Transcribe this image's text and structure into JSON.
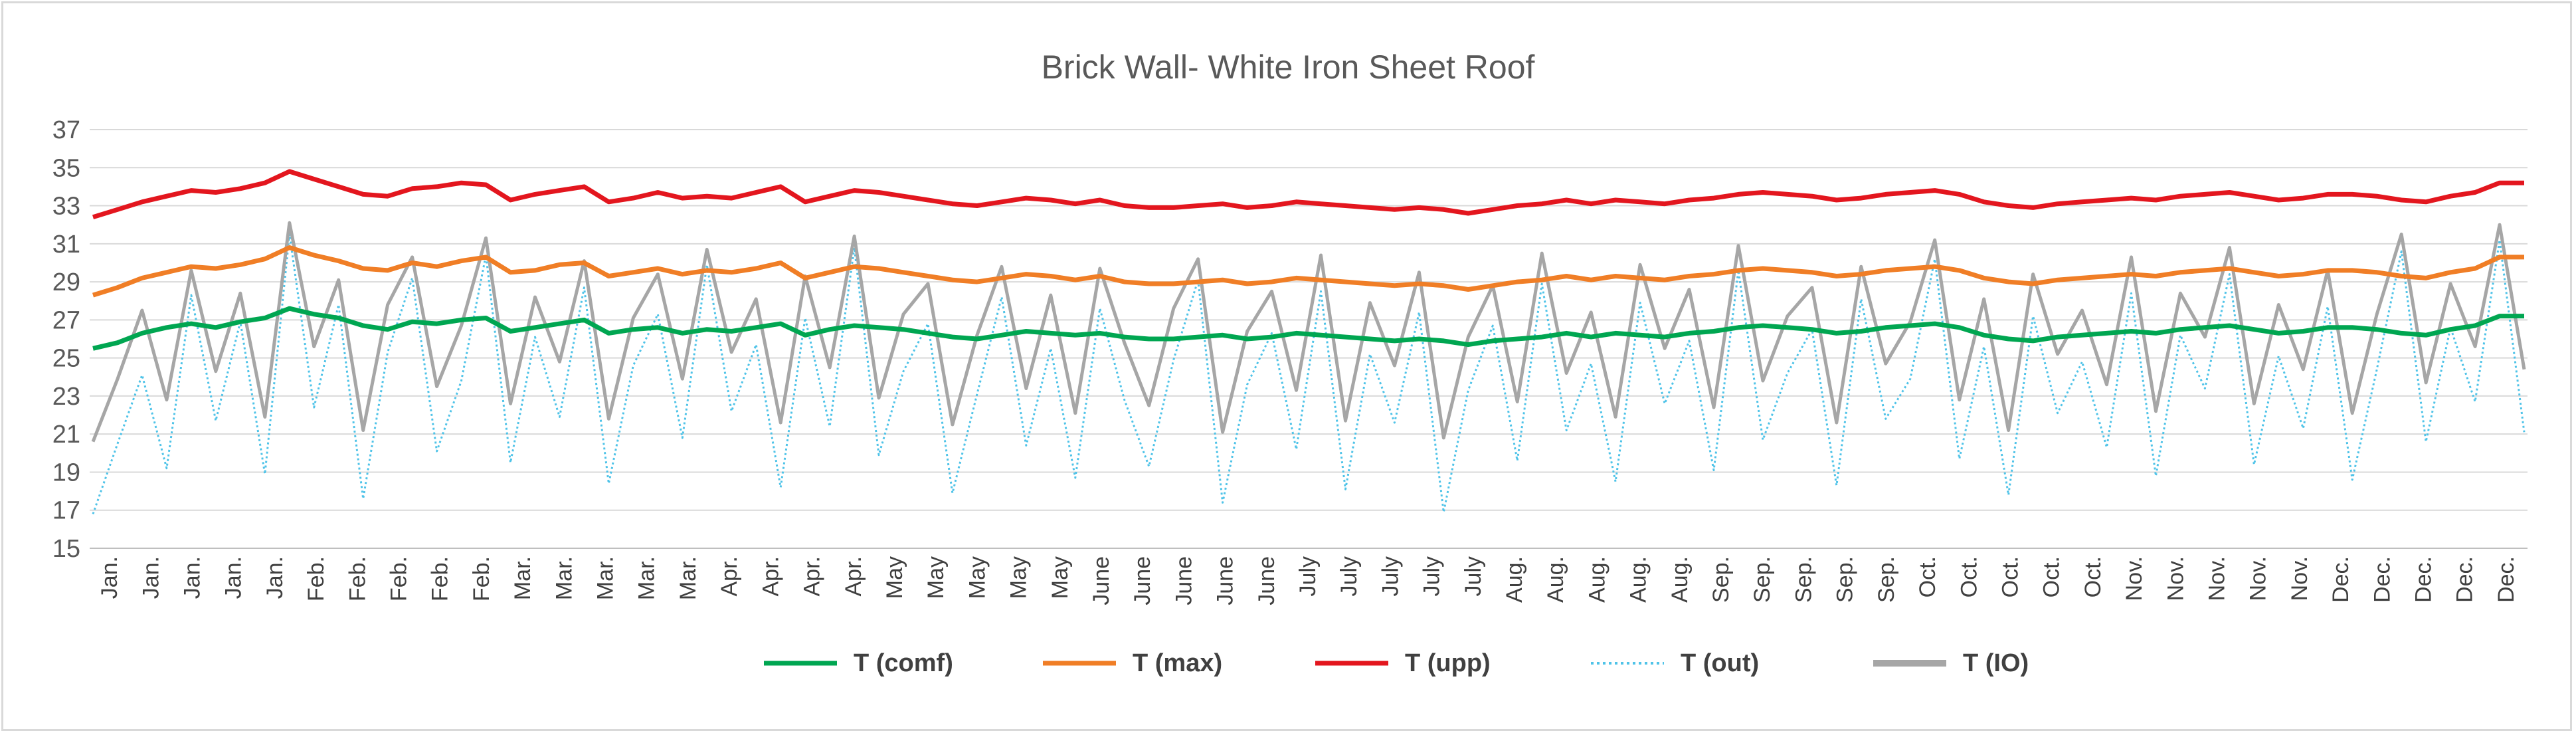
{
  "chart_data": {
    "type": "line",
    "title": "Brick Wall- White Iron Sheet Roof",
    "xlabel": "",
    "ylabel": "",
    "ylim": [
      15,
      37
    ],
    "yticks": [
      "15",
      "17",
      "19",
      "21",
      "23",
      "25",
      "27",
      "29",
      "31",
      "33",
      "35",
      "37"
    ],
    "xticks": [
      "Jan.",
      "Jan.",
      "Jan.",
      "Jan.",
      "Jan.",
      "Feb.",
      "Feb.",
      "Feb.",
      "Feb.",
      "Feb.",
      "Mar.",
      "Mar.",
      "Mar.",
      "Mar.",
      "Mar.",
      "Apr.",
      "Apr.",
      "Apr.",
      "Apr.",
      "May",
      "May",
      "May",
      "May",
      "May",
      "June",
      "June",
      "June",
      "June",
      "June",
      "July",
      "July",
      "July",
      "July",
      "July",
      "Aug.",
      "Aug.",
      "Aug.",
      "Aug.",
      "Aug.",
      "Sep.",
      "Sep.",
      "Sep.",
      "Sep.",
      "Sep.",
      "Oct.",
      "Oct.",
      "Oct.",
      "Oct.",
      "Oct.",
      "Nov.",
      "Nov.",
      "Nov.",
      "Nov.",
      "Nov.",
      "Dec.",
      "Dec.",
      "Dec.",
      "Dec.",
      "Dec."
    ],
    "grid": true,
    "legend_position": "bottom",
    "series": [
      {
        "name": "T (comf)",
        "color": "#00a651",
        "style": "solid",
        "values": [
          25.5,
          25.8,
          26.3,
          26.6,
          26.8,
          26.6,
          26.9,
          27.1,
          27.6,
          27.3,
          27.1,
          26.7,
          26.5,
          26.9,
          26.8,
          27.0,
          27.1,
          26.4,
          26.6,
          26.8,
          27.0,
          26.3,
          26.5,
          26.6,
          26.3,
          26.5,
          26.4,
          26.6,
          26.8,
          26.2,
          26.5,
          26.7,
          26.6,
          26.5,
          26.3,
          26.1,
          26.0,
          26.2,
          26.4,
          26.3,
          26.2,
          26.3,
          26.1,
          26.0,
          26.0,
          26.1,
          26.2,
          26.0,
          26.1,
          26.3,
          26.2,
          26.1,
          26.0,
          25.9,
          26.0,
          25.9,
          25.7,
          25.9,
          26.0,
          26.1,
          26.3,
          26.1,
          26.3,
          26.2,
          26.1,
          26.3,
          26.4,
          26.6,
          26.7,
          26.6,
          26.5,
          26.3,
          26.4,
          26.6,
          26.7,
          26.8,
          26.6,
          26.2,
          26.0,
          25.9,
          26.1,
          26.2,
          26.3,
          26.4,
          26.3,
          26.5,
          26.6,
          26.7,
          26.5,
          26.3,
          26.4,
          26.6,
          26.6,
          26.5,
          26.3,
          26.2,
          26.5,
          26.7,
          27.2,
          27.2
        ]
      },
      {
        "name": "T (max)",
        "color": "#f07e26",
        "style": "solid",
        "values": [
          28.3,
          28.7,
          29.2,
          29.5,
          29.8,
          29.7,
          29.9,
          30.2,
          30.8,
          30.4,
          30.1,
          29.7,
          29.6,
          30.0,
          29.8,
          30.1,
          30.3,
          29.5,
          29.6,
          29.9,
          30.0,
          29.3,
          29.5,
          29.7,
          29.4,
          29.6,
          29.5,
          29.7,
          30.0,
          29.2,
          29.5,
          29.8,
          29.7,
          29.5,
          29.3,
          29.1,
          29.0,
          29.2,
          29.4,
          29.3,
          29.1,
          29.3,
          29.0,
          28.9,
          28.9,
          29.0,
          29.1,
          28.9,
          29.0,
          29.2,
          29.1,
          29.0,
          28.9,
          28.8,
          28.9,
          28.8,
          28.6,
          28.8,
          29.0,
          29.1,
          29.3,
          29.1,
          29.3,
          29.2,
          29.1,
          29.3,
          29.4,
          29.6,
          29.7,
          29.6,
          29.5,
          29.3,
          29.4,
          29.6,
          29.7,
          29.8,
          29.6,
          29.2,
          29.0,
          28.9,
          29.1,
          29.2,
          29.3,
          29.4,
          29.3,
          29.5,
          29.6,
          29.7,
          29.5,
          29.3,
          29.4,
          29.6,
          29.6,
          29.5,
          29.3,
          29.2,
          29.5,
          29.7,
          30.3,
          30.3
        ]
      },
      {
        "name": "T (upp)",
        "color": "#e3161e",
        "style": "solid",
        "values": [
          32.4,
          32.8,
          33.2,
          33.5,
          33.8,
          33.7,
          33.9,
          34.2,
          34.8,
          34.4,
          34.0,
          33.6,
          33.5,
          33.9,
          34.0,
          34.2,
          34.1,
          33.3,
          33.6,
          33.8,
          34.0,
          33.2,
          33.4,
          33.7,
          33.4,
          33.5,
          33.4,
          33.7,
          34.0,
          33.2,
          33.5,
          33.8,
          33.7,
          33.5,
          33.3,
          33.1,
          33.0,
          33.2,
          33.4,
          33.3,
          33.1,
          33.3,
          33.0,
          32.9,
          32.9,
          33.0,
          33.1,
          32.9,
          33.0,
          33.2,
          33.1,
          33.0,
          32.9,
          32.8,
          32.9,
          32.8,
          32.6,
          32.8,
          33.0,
          33.1,
          33.3,
          33.1,
          33.3,
          33.2,
          33.1,
          33.3,
          33.4,
          33.6,
          33.7,
          33.6,
          33.5,
          33.3,
          33.4,
          33.6,
          33.7,
          33.8,
          33.6,
          33.2,
          33.0,
          32.9,
          33.1,
          33.2,
          33.3,
          33.4,
          33.3,
          33.5,
          33.6,
          33.7,
          33.5,
          33.3,
          33.4,
          33.6,
          33.6,
          33.5,
          33.3,
          33.2,
          33.5,
          33.7,
          34.2,
          34.2
        ]
      },
      {
        "name": "T (out)",
        "color": "#4fc3e8",
        "style": "dotted",
        "values": [
          16.8,
          20.5,
          24.1,
          19.2,
          28.3,
          21.7,
          26.9,
          18.9,
          31.5,
          22.4,
          27.8,
          17.6,
          25.3,
          29.2,
          20.1,
          23.8,
          30.4,
          19.5,
          26.1,
          21.9,
          28.7,
          18.4,
          24.6,
          27.3,
          20.8,
          29.9,
          22.2,
          25.7,
          18.2,
          27.1,
          21.4,
          30.8,
          19.9,
          24.3,
          26.8,
          17.9,
          23.1,
          28.2,
          20.4,
          25.5,
          18.7,
          27.6,
          22.8,
          19.3,
          24.9,
          29.1,
          17.4,
          23.6,
          26.3,
          20.2,
          28.5,
          18.1,
          25.2,
          21.6,
          27.4,
          16.9,
          23.3,
          26.7,
          19.6,
          28.9,
          21.2,
          24.7,
          18.5,
          27.9,
          22.6,
          25.9,
          19.1,
          29.6,
          20.7,
          24.2,
          26.5,
          18.3,
          28.1,
          21.8,
          23.9,
          30.2,
          19.7,
          25.6,
          17.8,
          27.2,
          22.1,
          24.8,
          20.3,
          28.4,
          18.8,
          26.2,
          23.4,
          29.4,
          19.4,
          25.1,
          21.3,
          27.7,
          18.6,
          24.4,
          30.6,
          20.6,
          26.6,
          22.7,
          31.2,
          21.1
        ]
      },
      {
        "name": "T (IO)",
        "color": "#a6a6a6",
        "style": "solid",
        "values": [
          20.6,
          23.9,
          27.5,
          22.8,
          29.6,
          24.3,
          28.4,
          21.9,
          32.1,
          25.6,
          29.1,
          21.2,
          27.8,
          30.3,
          23.5,
          26.7,
          31.3,
          22.6,
          28.2,
          24.8,
          30.1,
          21.8,
          27.1,
          29.4,
          23.9,
          30.7,
          25.3,
          28.1,
          21.6,
          29.3,
          24.5,
          31.4,
          22.9,
          27.3,
          28.9,
          21.5,
          26.2,
          29.8,
          23.4,
          28.3,
          22.1,
          29.7,
          25.8,
          22.5,
          27.6,
          30.2,
          21.1,
          26.4,
          28.5,
          23.3,
          30.4,
          21.7,
          27.9,
          24.6,
          29.5,
          20.8,
          26.1,
          28.8,
          22.7,
          30.5,
          24.2,
          27.4,
          21.9,
          29.9,
          25.5,
          28.6,
          22.4,
          30.9,
          23.8,
          27.2,
          28.7,
          21.6,
          29.8,
          24.7,
          26.9,
          31.2,
          22.8,
          28.1,
          21.2,
          29.4,
          25.2,
          27.5,
          23.6,
          30.3,
          22.2,
          28.4,
          26.1,
          30.8,
          22.6,
          27.8,
          24.4,
          29.6,
          22.1,
          27.3,
          31.5,
          23.7,
          28.9,
          25.6,
          32.0,
          24.4
        ]
      }
    ]
  },
  "legend": {
    "items": [
      {
        "label": "T (comf)",
        "color": "#00a651"
      },
      {
        "label": "T (max)",
        "color": "#f07e26"
      },
      {
        "label": "T (upp)",
        "color": "#e3161e"
      },
      {
        "label": "T (out)",
        "color": "#4fc3e8"
      },
      {
        "label": "T (IO)",
        "color": "#a6a6a6"
      }
    ]
  }
}
